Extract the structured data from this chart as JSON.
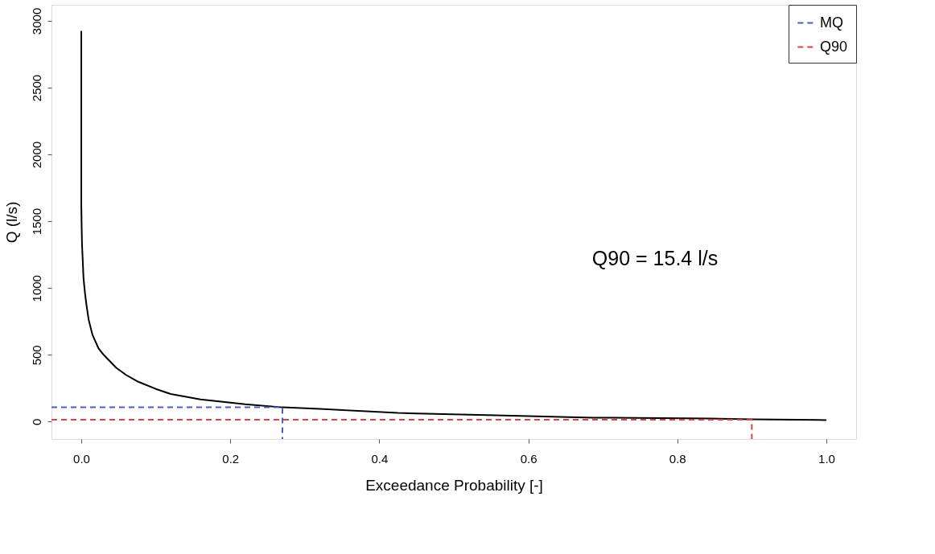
{
  "chart_data": {
    "type": "line",
    "xlabel": "Exceedance Probability [-]",
    "ylabel": "Q (l/s)",
    "xlim": [
      -0.04,
      1.04
    ],
    "ylim": [
      -130,
      3120
    ],
    "xticks": [
      {
        "value": 0,
        "label": "0.0"
      },
      0.2,
      0.4,
      0.6,
      0.8,
      {
        "value": 1,
        "label": "1.0"
      }
    ],
    "yticks": [
      0,
      500,
      1000,
      1500,
      2000,
      2500,
      3000
    ],
    "grid": false,
    "legend": "top right",
    "annotations": [
      "Q90 = 15.4 l/s"
    ],
    "series": [
      {
        "color": "#000000",
        "line_style": "solid",
        "x": [
          0,
          0,
          0.0005,
          0.001,
          0.002,
          0.003,
          0.005,
          0.007,
          0.01,
          0.015,
          0.023,
          0.03,
          0.047,
          0.06,
          0.075,
          0.1,
          0.12,
          0.16,
          0.22,
          0.27,
          0.32,
          0.425,
          0.556,
          0.687,
          0.843,
          0.9,
          1.0
        ],
        "values": [
          2925,
          1620,
          1450,
          1320,
          1200,
          1071,
          960,
          870,
          760,
          650,
          550,
          500,
          403,
          350,
          302,
          245,
          207,
          166,
          130,
          107,
          95,
          65,
          47,
          30,
          24,
          18,
          12
        ]
      },
      {
        "name": "MQ",
        "color": "#4a5cc4",
        "line_style": "dashed",
        "x": [
          -0.04,
          0.27,
          0.27
        ],
        "values": [
          107,
          107,
          -130
        ]
      },
      {
        "name": "Q90",
        "color": "#e0404a",
        "line_style": "dashed",
        "x": [
          -0.04,
          0.9,
          0.9
        ],
        "values": [
          15,
          15,
          -130
        ]
      }
    ]
  }
}
